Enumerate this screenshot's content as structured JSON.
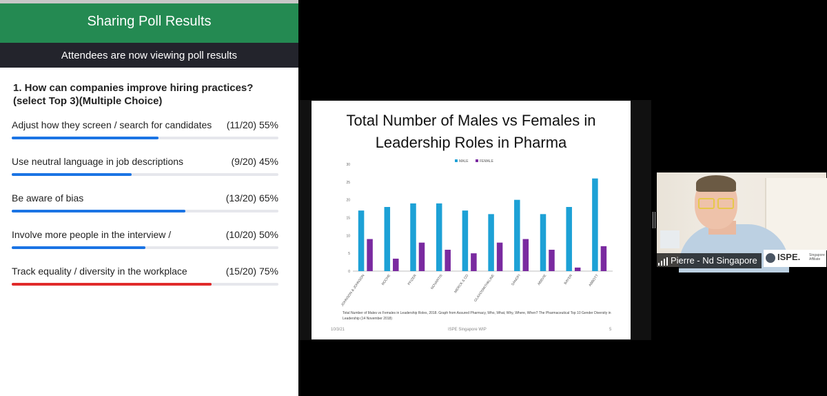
{
  "poll": {
    "header": "Sharing Poll Results",
    "subheader": "Attendees are now viewing poll results",
    "question": "1. How can companies improve hiring practices? (select Top 3)(Multiple Choice)",
    "options": [
      {
        "label": "Adjust how they screen / search for candidates",
        "value": "(11/20) 55%",
        "percent": 55,
        "color": "#1b74e4"
      },
      {
        "label": "Use neutral language in job descriptions",
        "value": "(9/20) 45%",
        "percent": 45,
        "color": "#1b74e4"
      },
      {
        "label": "Be aware of bias",
        "value": "(13/20) 65%",
        "percent": 65,
        "color": "#1b74e4"
      },
      {
        "label": "Involve more people in the interview /",
        "value": "(10/20) 50%",
        "percent": 50,
        "color": "#1b74e4"
      },
      {
        "label": "Track equality / diversity in the workplace",
        "value": "(15/20) 75%",
        "percent": 75,
        "color": "#e02a2a"
      }
    ]
  },
  "slide": {
    "title": "Total Number of Males vs Females in Leadership Roles in Pharma",
    "caption": "Total Number of Males vs Females in Leadership Roles, 2018. Graph from Assured Pharmacy, Who, What, Why, Where, When? The Pharmaceutical Top 10 Gender Diversity in Leadership (14 November 2018)",
    "footer_date": "10/3/21",
    "footer_center": "ISPE Singapore WIP",
    "footer_page": "5"
  },
  "chart_data": {
    "type": "bar",
    "categories": [
      "JOHNSON & JOHNSON",
      "ROCHE",
      "PFIZER",
      "NOVARTIS",
      "MERCK & CO",
      "GLAXOSMITHKLINE",
      "SANOFI",
      "ABBVIE",
      "BAYER",
      "ABBOTT"
    ],
    "series": [
      {
        "name": "MALE",
        "color": "#1da1d6",
        "values": [
          17,
          18,
          19,
          19,
          17,
          16,
          20,
          16,
          18,
          26
        ]
      },
      {
        "name": "FEMALE",
        "color": "#7a2aa0",
        "values": [
          9,
          3.5,
          8,
          6,
          5,
          8,
          9,
          6,
          1,
          7
        ]
      }
    ],
    "ylim": [
      0,
      30
    ],
    "yticks": [
      "0",
      "5",
      "10",
      "15",
      "20",
      "25",
      "30"
    ],
    "legend_position": "top",
    "grid": false
  },
  "video": {
    "participant_name": "Pierre - Nd Singapore",
    "logo_text": "ISPE.",
    "logo_sub": "Singapore Affiliate"
  }
}
